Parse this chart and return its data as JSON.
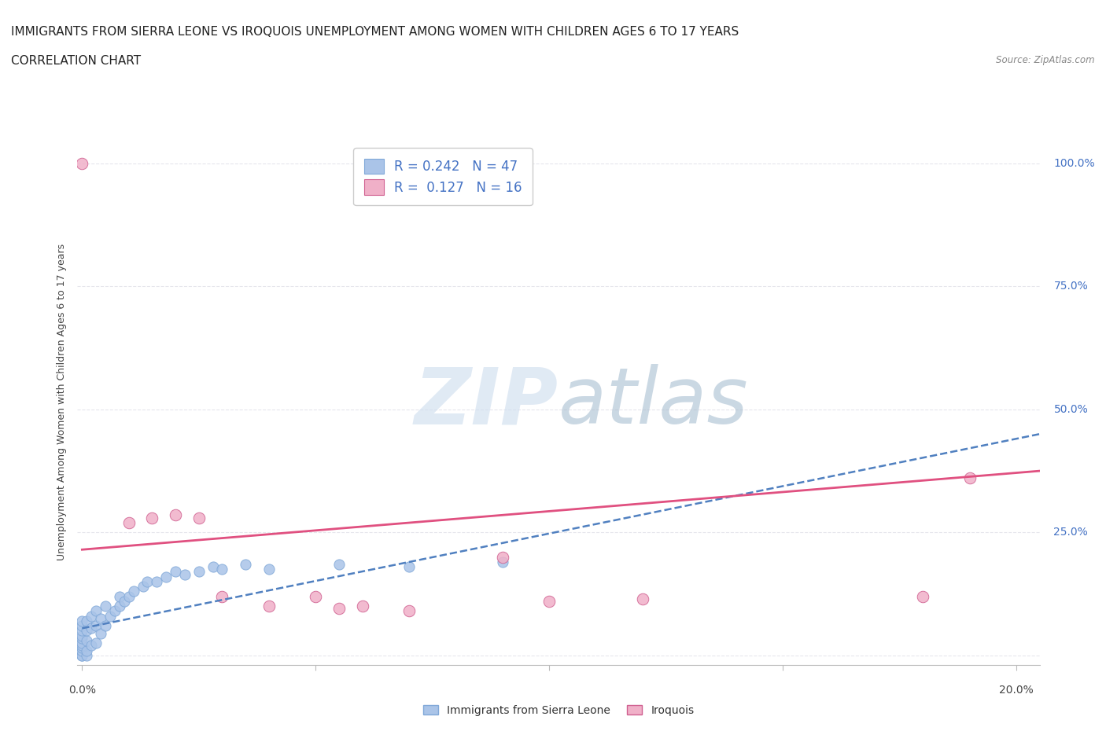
{
  "title_line1": "IMMIGRANTS FROM SIERRA LEONE VS IROQUOIS UNEMPLOYMENT AMONG WOMEN WITH CHILDREN AGES 6 TO 17 YEARS",
  "title_line2": "CORRELATION CHART",
  "source": "Source: ZipAtlas.com",
  "ylabel": "Unemployment Among Women with Children Ages 6 to 17 years",
  "blue_R": 0.242,
  "blue_N": 47,
  "pink_R": 0.127,
  "pink_N": 16,
  "x_min": -0.001,
  "x_max": 0.205,
  "y_min": -0.02,
  "y_max": 1.05,
  "x_ticks": [
    0.0,
    0.05,
    0.1,
    0.15,
    0.2
  ],
  "y_ticks": [
    0.0,
    0.25,
    0.5,
    0.75,
    1.0
  ],
  "y_tick_labels": [
    "",
    "25.0%",
    "50.0%",
    "75.0%",
    "100.0%"
  ],
  "background_color": "#ffffff",
  "grid_color": "#e0e0e8",
  "blue_color": "#aac4e8",
  "blue_edge_color": "#80a8d8",
  "blue_line_color": "#5080c0",
  "pink_color": "#f0b0c8",
  "pink_edge_color": "#d06090",
  "pink_line_color": "#e05080",
  "legend_footer_blue": "Immigrants from Sierra Leone",
  "legend_footer_pink": "Iroquois",
  "blue_scatter_x": [
    0.0,
    0.0,
    0.0,
    0.0,
    0.0,
    0.0,
    0.0,
    0.0,
    0.0,
    0.0,
    0.0,
    0.001,
    0.001,
    0.001,
    0.001,
    0.001,
    0.002,
    0.002,
    0.002,
    0.003,
    0.003,
    0.003,
    0.004,
    0.004,
    0.005,
    0.005,
    0.006,
    0.007,
    0.008,
    0.008,
    0.009,
    0.01,
    0.011,
    0.013,
    0.014,
    0.016,
    0.018,
    0.02,
    0.022,
    0.025,
    0.028,
    0.03,
    0.035,
    0.04,
    0.055,
    0.07,
    0.09
  ],
  "blue_scatter_y": [
    0.0,
    0.0,
    0.01,
    0.015,
    0.02,
    0.025,
    0.035,
    0.04,
    0.05,
    0.06,
    0.07,
    0.0,
    0.01,
    0.03,
    0.05,
    0.07,
    0.02,
    0.055,
    0.08,
    0.025,
    0.06,
    0.09,
    0.045,
    0.075,
    0.06,
    0.1,
    0.08,
    0.09,
    0.1,
    0.12,
    0.11,
    0.12,
    0.13,
    0.14,
    0.15,
    0.15,
    0.16,
    0.17,
    0.165,
    0.17,
    0.18,
    0.175,
    0.185,
    0.175,
    0.185,
    0.18,
    0.19
  ],
  "pink_scatter_x": [
    0.0,
    0.01,
    0.015,
    0.02,
    0.025,
    0.03,
    0.04,
    0.05,
    0.055,
    0.06,
    0.07,
    0.09,
    0.1,
    0.12,
    0.18,
    0.19
  ],
  "pink_scatter_y": [
    1.0,
    0.27,
    0.28,
    0.285,
    0.28,
    0.12,
    0.1,
    0.12,
    0.095,
    0.1,
    0.09,
    0.2,
    0.11,
    0.115,
    0.12,
    0.36
  ],
  "blue_trend_x0": 0.0,
  "blue_trend_x1": 0.205,
  "blue_trend_y0": 0.055,
  "blue_trend_y1": 0.45,
  "pink_trend_x0": 0.0,
  "pink_trend_x1": 0.205,
  "pink_trend_y0": 0.215,
  "pink_trend_y1": 0.375
}
